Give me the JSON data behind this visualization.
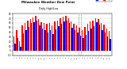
{
  "title": "Milwaukee Weather Dew Point",
  "subtitle": "Daily High/Low",
  "background_color": "#ffffff",
  "plot_bg_color": "#ffffff",
  "bar_color_high": "#ff0000",
  "bar_color_low": "#0000ff",
  "legend_high": "High",
  "legend_low": "Low",
  "high_vals": [
    30,
    45,
    20,
    55,
    60,
    65,
    68,
    72,
    75,
    68,
    62,
    60,
    58,
    60,
    55,
    63,
    66,
    70,
    73,
    75,
    70,
    63,
    58,
    55,
    50,
    45,
    52,
    58,
    63,
    66,
    70,
    68,
    60,
    56,
    48,
    42
  ],
  "low_vals": [
    15,
    28,
    8,
    38,
    45,
    52,
    60,
    62,
    65,
    55,
    48,
    45,
    40,
    44,
    36,
    47,
    53,
    58,
    64,
    65,
    60,
    50,
    44,
    40,
    32,
    27,
    35,
    42,
    48,
    53,
    62,
    57,
    44,
    40,
    30,
    25
  ],
  "ylim": [
    -10,
    80
  ],
  "yticks": [
    -10,
    0,
    10,
    20,
    30,
    40,
    50,
    60,
    70,
    80
  ],
  "xtick_labels": [
    "1",
    "2",
    "3",
    "4",
    "5",
    "6",
    "7",
    "8",
    "9",
    "10",
    "11",
    "12",
    "1",
    "2",
    "3",
    "4",
    "5",
    "6",
    "7",
    "8",
    "9",
    "10",
    "11",
    "12",
    "1",
    "2",
    "3",
    "4",
    "5",
    "6",
    "7",
    "8",
    "9",
    "10",
    "11",
    "12"
  ],
  "grid_color": "#cccccc",
  "dashed_vline_positions": [
    23.5,
    24.5
  ],
  "n_bars": 36
}
